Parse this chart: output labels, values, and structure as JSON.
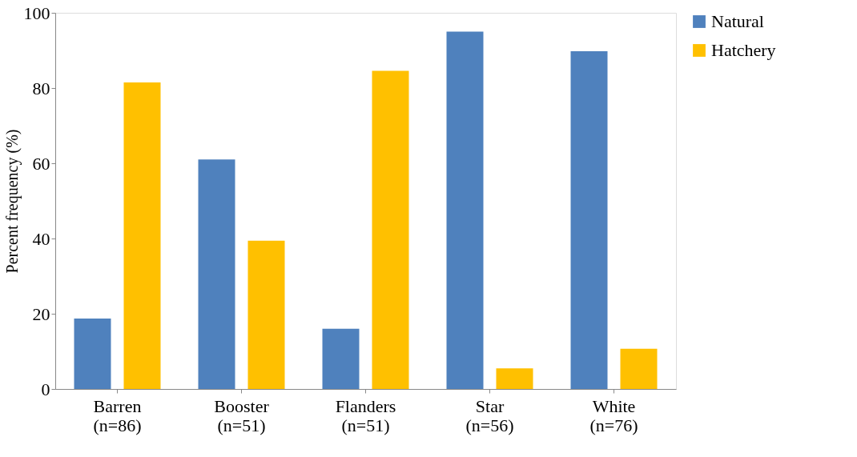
{
  "chart_data": {
    "type": "bar",
    "ylabel": "Percent frequency (%)",
    "categories": [
      "Barren (n=86)",
      "Booster (n=51)",
      "Flanders (n=51)",
      "Star (n=56)",
      "White (n=76)"
    ],
    "series": [
      {
        "name": "Natural",
        "color": "#4f81bd",
        "values": [
          18.7,
          61.0,
          16.0,
          95.0,
          89.8
        ]
      },
      {
        "name": "Hatchery",
        "color": "#ffc000",
        "values": [
          81.5,
          39.4,
          84.6,
          5.5,
          10.7
        ]
      }
    ],
    "ylim": [
      0,
      100
    ],
    "yticks": [
      0,
      20,
      40,
      60,
      80,
      100
    ],
    "grid": false,
    "legend": "right"
  }
}
